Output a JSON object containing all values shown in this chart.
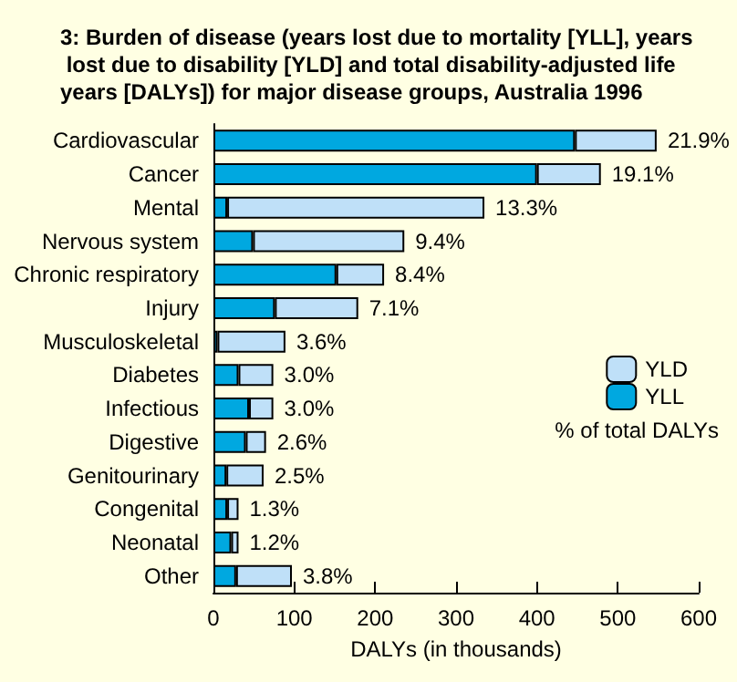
{
  "chart_data": {
    "type": "bar",
    "orientation": "horizontal",
    "stacked": true,
    "title": "3: Burden of disease (years lost due to mortality [YLL], years lost due to disability [YLD] and total disability-adjusted life years [DALYs]) for major disease groups, Australia 1996",
    "xlabel": "DALYs (in thousands)",
    "categories": [
      "Cardiovascular",
      "Cancer",
      "Mental",
      "Nervous system",
      "Chronic respiratory",
      "Injury",
      "Musculoskeletal",
      "Diabetes",
      "Infectious",
      "Digestive",
      "Genitourinary",
      "Congenital",
      "Neonatal",
      "Other"
    ],
    "series": [
      {
        "name": "YLL",
        "color": "#00a8e0",
        "values": [
          447,
          400,
          17,
          49,
          152,
          76,
          5,
          31,
          44,
          40,
          16,
          17,
          22,
          28
        ]
      },
      {
        "name": "YLD",
        "color": "#bfe0f8",
        "values": [
          101,
          79,
          318,
          187,
          59,
          103,
          84,
          43,
          30,
          25,
          46,
          14,
          9,
          69
        ]
      }
    ],
    "xlim": [
      0,
      600
    ],
    "xticks": [
      0,
      100,
      200,
      300,
      400,
      500,
      600
    ],
    "grid": false,
    "legend": "right",
    "annotations": [
      "% of total DALYs",
      {
        "text": "21.9%",
        "x": 548,
        "y": "Cardiovascular"
      },
      {
        "text": "19.1%",
        "x": 479,
        "y": "Cancer"
      },
      {
        "text": "13.3%",
        "x": 335,
        "y": "Mental"
      },
      {
        "text": "9.4%",
        "x": 236,
        "y": "Nervous system"
      },
      {
        "text": "8.4%",
        "x": 211,
        "y": "Chronic respiratory"
      },
      {
        "text": "7.1%",
        "x": 179,
        "y": "Injury"
      },
      {
        "text": "3.6%",
        "x": 89,
        "y": "Musculoskeletal"
      },
      {
        "text": "3.0%",
        "x": 74,
        "y": "Diabetes"
      },
      {
        "text": "3.0%",
        "x": 74,
        "y": "Infectious"
      },
      {
        "text": "2.6%",
        "x": 65,
        "y": "Digestive"
      },
      {
        "text": "2.5%",
        "x": 62,
        "y": "Genitourinary"
      },
      {
        "text": "1.3%",
        "x": 31,
        "y": "Congenital"
      },
      {
        "text": "1.2%",
        "x": 31,
        "y": "Neonatal"
      },
      {
        "text": "3.8%",
        "x": 97,
        "y": "Other"
      }
    ]
  }
}
